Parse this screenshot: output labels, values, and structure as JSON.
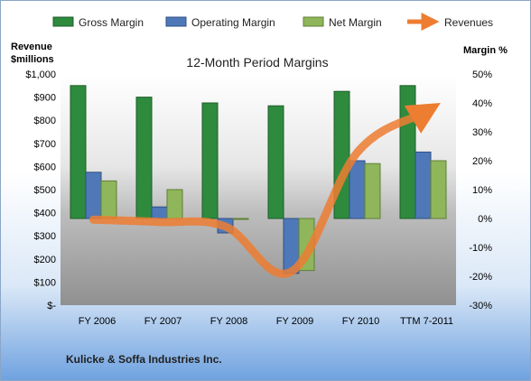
{
  "chart_data": {
    "type": "bar",
    "title": "12-Month Period Margins",
    "left_axis_title": [
      "Revenue",
      "$millions"
    ],
    "right_axis_title": "Margin %",
    "categories": [
      "FY 2006",
      "FY 2007",
      "FY 2008",
      "FY 2009",
      "FY 2010",
      "TTM 7-2011"
    ],
    "left_ticks": [
      "$-",
      "$100",
      "$200",
      "$300",
      "$400",
      "$500",
      "$600",
      "$700",
      "$800",
      "$900",
      "$1,000"
    ],
    "right_ticks": [
      "-30%",
      "-20%",
      "-10%",
      "0%",
      "10%",
      "20%",
      "30%",
      "40%",
      "50%"
    ],
    "left_ylim": [
      0,
      1000
    ],
    "right_ylim": [
      -30,
      50
    ],
    "series": [
      {
        "name": "Gross Margin",
        "axis": "right",
        "color": "#2e8b3e",
        "values": [
          46,
          42,
          40,
          39,
          44,
          46
        ]
      },
      {
        "name": "Operating Margin",
        "axis": "right",
        "color": "#4f78b8",
        "values": [
          16,
          4,
          -5,
          -19,
          20,
          23
        ]
      },
      {
        "name": "Net Margin",
        "axis": "right",
        "color": "#8fb65a",
        "values": [
          13,
          10,
          0,
          -18,
          19,
          20
        ]
      },
      {
        "name": "Revenues",
        "axis": "left",
        "type": "line",
        "color": "#ed7d31",
        "values": [
          370,
          360,
          340,
          145,
          660,
          830
        ]
      }
    ],
    "legend_position": "top",
    "grid": false
  },
  "footer": {
    "company": "Kulicke & Soffa Industries Inc."
  }
}
